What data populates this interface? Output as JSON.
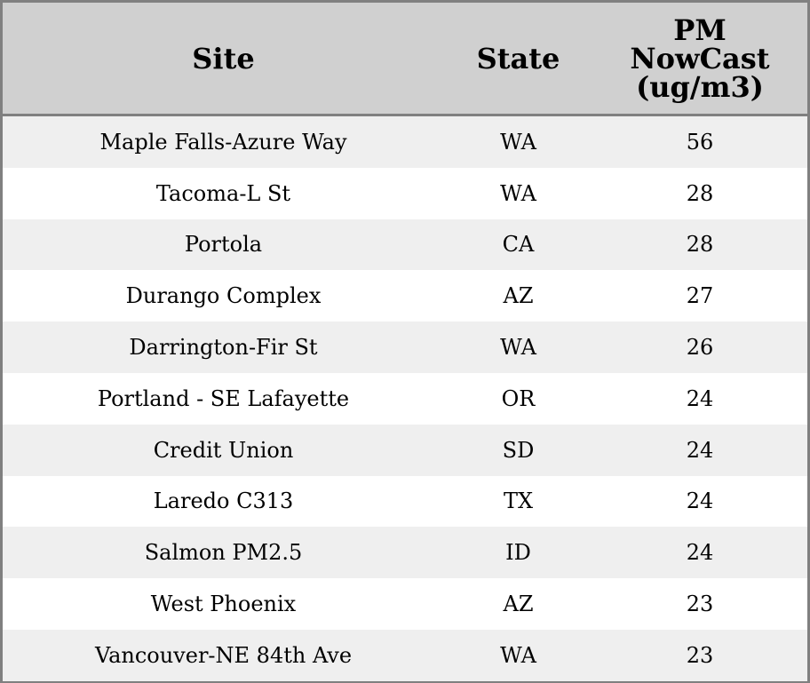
{
  "chart_data": {
    "type": "table",
    "columns": [
      "Site",
      "State",
      "PM NowCast (ug/m3)"
    ],
    "rows": [
      [
        "Maple Falls-Azure Way",
        "WA",
        "56"
      ],
      [
        "Tacoma-L St",
        "WA",
        "28"
      ],
      [
        "Portola",
        "CA",
        "28"
      ],
      [
        "Durango Complex",
        "AZ",
        "27"
      ],
      [
        "Darrington-Fir St",
        "WA",
        "26"
      ],
      [
        "Portland - SE Lafayette",
        "OR",
        "24"
      ],
      [
        "Credit Union",
        "SD",
        "24"
      ],
      [
        "Laredo C313",
        "TX",
        "24"
      ],
      [
        "Salmon PM2.5",
        "ID",
        "24"
      ],
      [
        "West Phoenix",
        "AZ",
        "23"
      ],
      [
        "Vancouver-NE 84th Ave",
        "WA",
        "23"
      ]
    ],
    "colors": {
      "header_bg": "#d0d0d0",
      "row_odd": "#efefef",
      "row_even": "#ffffff",
      "border": "#808080"
    }
  }
}
